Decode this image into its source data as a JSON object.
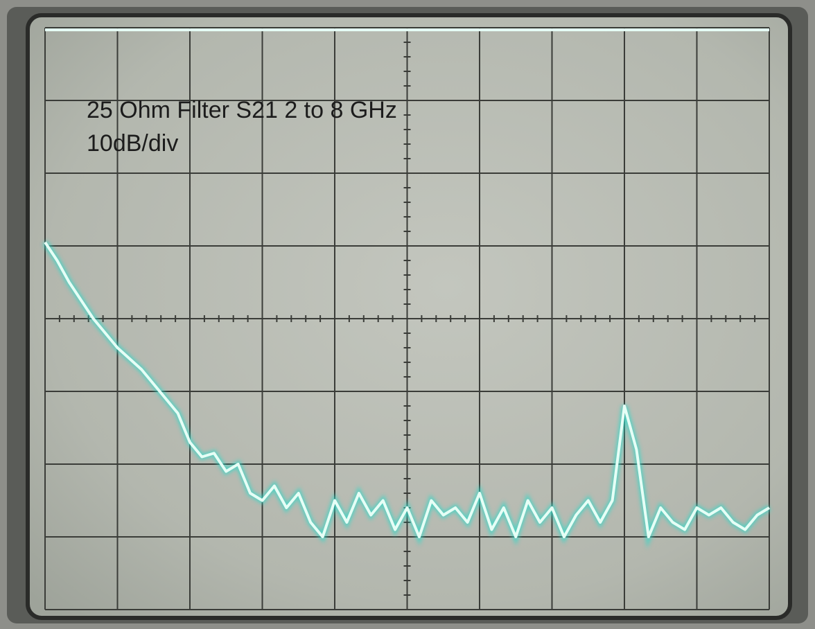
{
  "chart_data": {
    "type": "line",
    "title": "25 Ohm Filter S21 2 to 8 GHz",
    "subtitle": "10dB/div",
    "x": [
      2.0,
      2.1,
      2.2,
      2.3,
      2.4,
      2.5,
      2.6,
      2.7,
      2.8,
      2.9,
      3.0,
      3.1,
      3.2,
      3.3,
      3.4,
      3.5,
      3.6,
      3.7,
      3.8,
      3.9,
      4.0,
      4.1,
      4.2,
      4.3,
      4.4,
      4.5,
      4.6,
      4.7,
      4.8,
      4.9,
      5.0,
      5.1,
      5.2,
      5.3,
      5.4,
      5.5,
      5.6,
      5.7,
      5.8,
      5.9,
      6.0,
      6.1,
      6.2,
      6.3,
      6.4,
      6.5,
      6.6,
      6.7,
      6.8,
      6.9,
      7.0,
      7.1,
      7.2,
      7.3,
      7.4,
      7.5,
      7.6,
      7.7,
      7.8,
      7.9,
      8.0
    ],
    "series": [
      {
        "color": "#e6fff6",
        "values": [
          -0.3,
          -0.3,
          -0.3,
          -0.3,
          -0.3,
          -0.3,
          -0.3,
          -0.3,
          -0.3,
          -0.3,
          -0.3,
          -0.3,
          -0.3,
          -0.3,
          -0.3,
          -0.3,
          -0.3,
          -0.3,
          -0.3,
          -0.3,
          -0.3,
          -0.3,
          -0.3,
          -0.3,
          -0.3,
          -0.3,
          -0.3,
          -0.3,
          -0.3,
          -0.3,
          -0.3,
          -0.3,
          -0.3,
          -0.3,
          -0.3,
          -0.3,
          -0.3,
          -0.3,
          -0.3,
          -0.3,
          -0.3,
          -0.3,
          -0.3,
          -0.3,
          -0.3,
          -0.3,
          -0.3,
          -0.3,
          -0.3,
          -0.3,
          -0.3,
          -0.3,
          -0.3,
          -0.3,
          -0.3,
          -0.3,
          -0.3,
          -0.3,
          -0.3,
          -0.3,
          -0.3
        ]
      },
      {
        "color": "#e6fff6",
        "values": [
          -29.5,
          -32,
          -35,
          -37.5,
          -40,
          -42,
          -44,
          -45.5,
          -47,
          -49,
          -51,
          -53,
          -57,
          -59,
          -58.5,
          -61,
          -60,
          -64,
          -65,
          -63,
          -66,
          -64,
          -68,
          -70,
          -65,
          -68,
          -64,
          -67,
          -65,
          -69,
          -66,
          -70,
          -65,
          -67,
          -66,
          -68,
          -64,
          -69,
          -66,
          -70,
          -65,
          -68,
          -66,
          -70,
          -67,
          -65,
          -68,
          -65,
          -52,
          -58,
          -70,
          -66,
          -68,
          -69,
          -66,
          -67,
          -66,
          -68,
          -69,
          -67,
          -66
        ]
      }
    ],
    "xlim": [
      2,
      8
    ],
    "ylim": [
      -80,
      0
    ],
    "glow": "#35d8c8"
  }
}
